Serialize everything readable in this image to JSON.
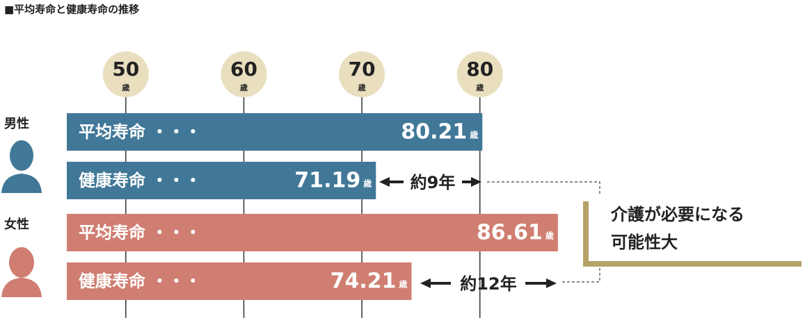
{
  "chart_data": {
    "type": "bar",
    "title": "■平均寿命と健康寿命の推移",
    "categories": [
      "平均寿命 ・・・",
      "健康寿命 ・・・"
    ],
    "series": [
      {
        "name": "男性",
        "color": "#417898",
        "values": [
          80.21,
          71.19
        ]
      },
      {
        "name": "女性",
        "color": "#d07e72",
        "values": [
          86.61,
          74.21
        ]
      }
    ],
    "unit": "歳",
    "xlim": [
      45,
      100
    ],
    "xticks": [
      50,
      60,
      70,
      80
    ],
    "grid": true,
    "annotations": [
      "約9年",
      "約12年"
    ],
    "callout": [
      "介護が必要になる",
      "可能性大"
    ]
  }
}
